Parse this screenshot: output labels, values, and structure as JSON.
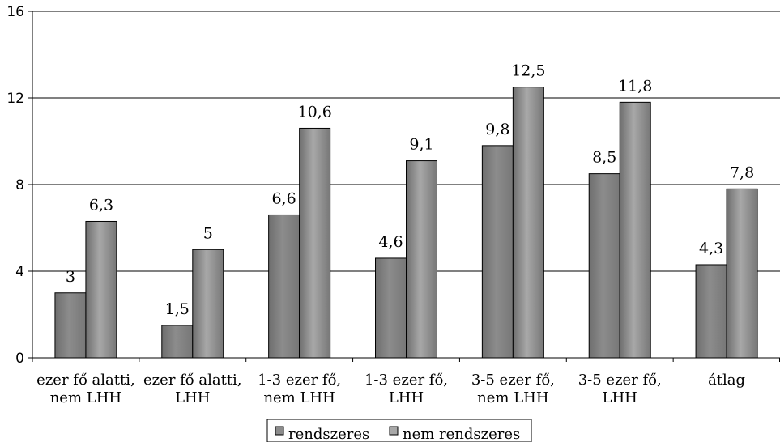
{
  "chart_data": {
    "type": "bar",
    "categories": [
      [
        "ezer fő alatti,",
        "nem LHH"
      ],
      [
        "ezer fő alatti,",
        "LHH"
      ],
      [
        "1-3 ezer fő,",
        "nem LHH"
      ],
      [
        "1-3 ezer fő,",
        "LHH"
      ],
      [
        "3-5 ezer fő,",
        "nem LHH"
      ],
      [
        "3-5 ezer fő,",
        "LHH"
      ],
      [
        "átlag"
      ]
    ],
    "series": [
      {
        "name": "rendszeres",
        "values": [
          3,
          1.5,
          6.6,
          4.6,
          9.8,
          8.5,
          4.3
        ],
        "labels": [
          "3",
          "1,5",
          "6,6",
          "4,6",
          "9,8",
          "8,5",
          "4,3"
        ],
        "color": "#8c8c8c"
      },
      {
        "name": "nem rendszeres",
        "values": [
          6.3,
          5,
          10.6,
          9.1,
          12.5,
          11.8,
          7.8
        ],
        "labels": [
          "6,3",
          "5",
          "10,6",
          "9,1",
          "12,5",
          "11,8",
          "7,8"
        ],
        "color": "#a8a8a8"
      }
    ],
    "ylim": [
      0,
      16
    ],
    "yticks": [
      0,
      4,
      8,
      12,
      16
    ],
    "grid": true,
    "legend": "bottom"
  }
}
